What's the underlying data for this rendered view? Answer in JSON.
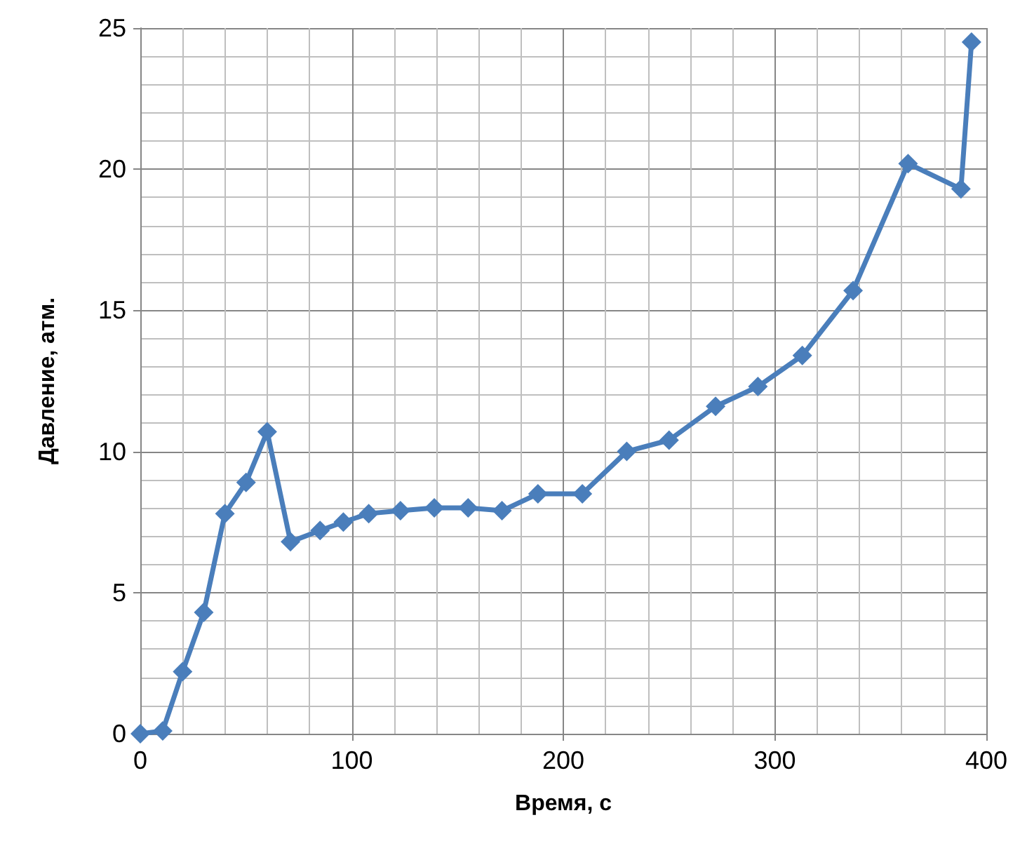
{
  "chart_data": {
    "type": "line",
    "xlabel": "Время, с",
    "ylabel": "Давление, атм.",
    "x": [
      0,
      10.6,
      20,
      30,
      40,
      50,
      60,
      71,
      85,
      96,
      108,
      123,
      139,
      155,
      171,
      188,
      209,
      230,
      250,
      272,
      292,
      313,
      337,
      363,
      388,
      393
    ],
    "series": [
      {
        "color": "#4a7ebb",
        "values": [
          0,
          0.1,
          2.2,
          4.3,
          7.8,
          8.9,
          10.7,
          6.8,
          7.2,
          7.5,
          7.8,
          7.9,
          8,
          8,
          7.9,
          8.5,
          8.5,
          10,
          10.4,
          11.6,
          12.3,
          13.4,
          15.7,
          20.2,
          19.3,
          24.5
        ]
      }
    ],
    "xlim": [
      0,
      400
    ],
    "xticks": [
      0,
      100,
      200,
      300,
      400
    ],
    "ylim": [
      0,
      25
    ],
    "yticks": [
      0,
      5,
      10,
      15,
      20,
      25
    ],
    "grid": true,
    "marker": "diamond",
    "line_style": "solid"
  }
}
